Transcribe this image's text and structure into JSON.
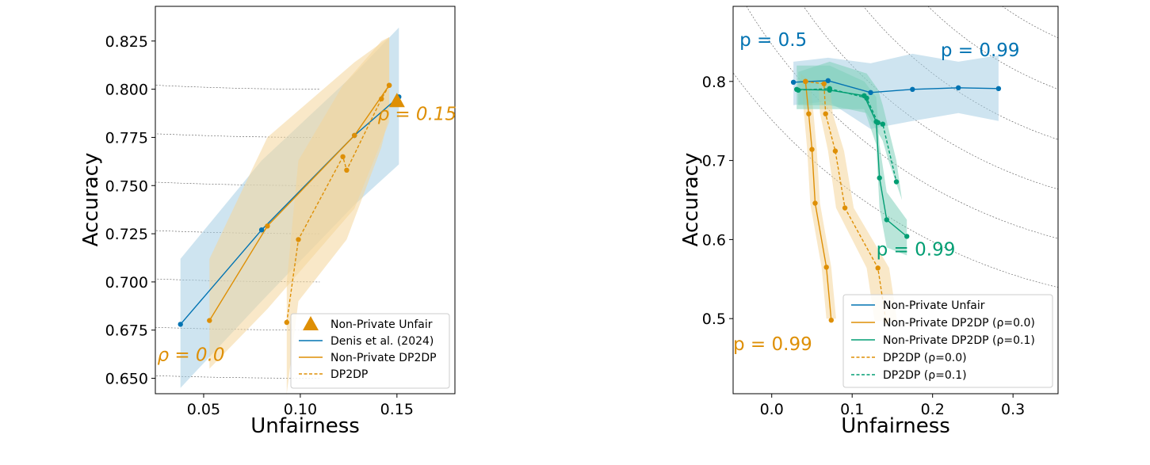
{
  "colors": {
    "blue": "#0173b2",
    "orange": "#de8f05",
    "green": "#029e73",
    "blue_fill": "#a6cde4",
    "orange_fill": "#f4d59b",
    "green_fill": "#80cfb9"
  },
  "chart_data": [
    {
      "type": "line",
      "xlabel": "Unfairness",
      "ylabel": "Accuracy",
      "xlim": [
        0.025,
        0.18
      ],
      "ylim": [
        0.642,
        0.843
      ],
      "xticks": [
        0.05,
        0.1,
        0.15
      ],
      "xtick_labels": [
        "0.05",
        "0.10",
        "0.15"
      ],
      "yticks": [
        0.65,
        0.675,
        0.7,
        0.725,
        0.75,
        0.775,
        0.8,
        0.825
      ],
      "ytick_labels": [
        "0.650",
        "0.675",
        "0.700",
        "0.725",
        "0.750",
        "0.775",
        "0.800",
        "0.825"
      ],
      "series": [
        {
          "name": "Denis et al. (2024)",
          "style": "solid",
          "color": "blue",
          "x": [
            0.038,
            0.08,
            0.128,
            0.151
          ],
          "y": [
            0.678,
            0.727,
            0.776,
            0.796
          ],
          "band_upper": [
            [
              0.038,
              0.712
            ],
            [
              0.08,
              0.763
            ],
            [
              0.128,
              0.808
            ],
            [
              0.151,
              0.832
            ]
          ],
          "band_lower": [
            [
              0.151,
              0.761
            ],
            [
              0.128,
              0.74
            ],
            [
              0.08,
              0.69
            ],
            [
              0.038,
              0.645
            ]
          ]
        },
        {
          "name": "Non-Private DP2DP",
          "style": "solid",
          "color": "orange",
          "x": [
            0.053,
            0.083,
            0.128,
            0.146
          ],
          "y": [
            0.68,
            0.729,
            0.776,
            0.802
          ],
          "band_upper": [
            [
              0.053,
              0.712
            ],
            [
              0.083,
              0.775
            ],
            [
              0.128,
              0.814
            ],
            [
              0.146,
              0.827
            ]
          ],
          "band_lower": [
            [
              0.146,
              0.783
            ],
            [
              0.128,
              0.738
            ],
            [
              0.083,
              0.686
            ],
            [
              0.053,
              0.655
            ]
          ]
        },
        {
          "name": "DP2DP",
          "style": "dashed",
          "color": "orange",
          "x": [
            0.093,
            0.099,
            0.122,
            0.124,
            0.142,
            0.146
          ],
          "y": [
            0.679,
            0.722,
            0.765,
            0.758,
            0.795,
            0.802
          ],
          "band_upper": [
            [
              0.093,
              0.7
            ],
            [
              0.099,
              0.763
            ],
            [
              0.122,
              0.802
            ],
            [
              0.142,
              0.825
            ],
            [
              0.146,
              0.827
            ]
          ],
          "band_lower": [
            [
              0.146,
              0.787
            ],
            [
              0.142,
              0.77
            ],
            [
              0.124,
              0.722
            ],
            [
              0.099,
              0.69
            ],
            [
              0.093,
              0.642
            ]
          ]
        },
        {
          "name": "Non-Private Unfair",
          "type": "marker",
          "marker": "triangle",
          "color": "orange",
          "x": [
            0.15
          ],
          "y": [
            0.794
          ]
        }
      ],
      "legend": {
        "position": "lower-right",
        "entries": [
          {
            "label": "Non-Private Unfair",
            "kind": "triangle",
            "color": "orange"
          },
          {
            "label": "Denis et al. (2024)",
            "kind": "solid",
            "color": "blue"
          },
          {
            "label": "Non-Private DP2DP",
            "kind": "solid",
            "color": "orange"
          },
          {
            "label": "DP2DP",
            "kind": "dashed",
            "color": "orange"
          }
        ]
      },
      "annotations": [
        {
          "text": "ρ = 0.0",
          "x": 0.026,
          "y": 0.659,
          "color": "orange",
          "italic": true
        },
        {
          "text": "ρ = 0.15",
          "x": 0.14,
          "y": 0.784,
          "color": "orange",
          "italic": true
        }
      ]
    },
    {
      "type": "line",
      "xlabel": "Unfairness",
      "ylabel": "Accuracy",
      "xlim": [
        -0.048,
        0.356
      ],
      "ylim": [
        0.405,
        0.895
      ],
      "xticks": [
        0.0,
        0.1,
        0.2,
        0.3
      ],
      "xtick_labels": [
        "0.0",
        "0.1",
        "0.2",
        "0.3"
      ],
      "yticks": [
        0.5,
        0.6,
        0.7,
        0.8
      ],
      "ytick_labels": [
        "0.5",
        "0.6",
        "0.7",
        "0.8"
      ],
      "series": [
        {
          "name": "Non-Private Unfair",
          "style": "solid",
          "color": "blue",
          "x": [
            0.027,
            0.07,
            0.123,
            0.175,
            0.232,
            0.282
          ],
          "y": [
            0.799,
            0.801,
            0.786,
            0.79,
            0.792,
            0.791
          ],
          "band_upper": [
            [
              0.027,
              0.825
            ],
            [
              0.07,
              0.83
            ],
            [
              0.123,
              0.823
            ],
            [
              0.175,
              0.835
            ],
            [
              0.232,
              0.825
            ],
            [
              0.282,
              0.833
            ]
          ],
          "band_lower": [
            [
              0.282,
              0.75
            ],
            [
              0.232,
              0.76
            ],
            [
              0.175,
              0.75
            ],
            [
              0.123,
              0.74
            ],
            [
              0.07,
              0.775
            ],
            [
              0.027,
              0.77
            ]
          ]
        },
        {
          "name": "Non-Private DP2DP (ρ=0.0)",
          "style": "solid",
          "color": "orange",
          "x": [
            0.042,
            0.046,
            0.05,
            0.054,
            0.068,
            0.074
          ],
          "y": [
            0.8,
            0.759,
            0.714,
            0.646,
            0.565,
            0.498
          ],
          "band_upper": [
            [
              0.036,
              0.81
            ],
            [
              0.04,
              0.76
            ],
            [
              0.044,
              0.715
            ],
            [
              0.048,
              0.645
            ],
            [
              0.062,
              0.565
            ],
            [
              0.068,
              0.5
            ]
          ],
          "band_lower": [
            [
              0.08,
              0.5
            ],
            [
              0.074,
              0.565
            ],
            [
              0.06,
              0.646
            ],
            [
              0.056,
              0.714
            ],
            [
              0.052,
              0.759
            ],
            [
              0.048,
              0.8
            ]
          ]
        },
        {
          "name": "Non-Private DP2DP (ρ=0.1)",
          "style": "solid",
          "color": "green",
          "x": [
            0.031,
            0.072,
            0.115,
            0.13,
            0.134,
            0.143,
            0.168
          ],
          "y": [
            0.79,
            0.789,
            0.782,
            0.749,
            0.678,
            0.625,
            0.604
          ],
          "band_upper": [
            [
              0.031,
              0.82
            ],
            [
              0.072,
              0.82
            ],
            [
              0.115,
              0.8
            ],
            [
              0.13,
              0.78
            ],
            [
              0.134,
              0.72
            ],
            [
              0.143,
              0.66
            ],
            [
              0.168,
              0.625
            ]
          ],
          "band_lower": [
            [
              0.168,
              0.58
            ],
            [
              0.143,
              0.59
            ],
            [
              0.134,
              0.64
            ],
            [
              0.13,
              0.72
            ],
            [
              0.115,
              0.765
            ],
            [
              0.072,
              0.765
            ],
            [
              0.031,
              0.765
            ]
          ]
        },
        {
          "name": "DP2DP (ρ=0.0)",
          "style": "dashed",
          "color": "orange",
          "x": [
            0.042,
            0.065,
            0.067,
            0.079,
            0.091,
            0.132,
            0.142
          ],
          "y": [
            0.8,
            0.797,
            0.759,
            0.712,
            0.64,
            0.564,
            0.497
          ],
          "band_upper": [
            [
              0.042,
              0.8
            ],
            [
              0.058,
              0.8
            ],
            [
              0.06,
              0.76
            ],
            [
              0.07,
              0.712
            ],
            [
              0.08,
              0.64
            ],
            [
              0.118,
              0.564
            ],
            [
              0.128,
              0.497
            ]
          ],
          "band_lower": [
            [
              0.156,
              0.497
            ],
            [
              0.146,
              0.564
            ],
            [
              0.102,
              0.64
            ],
            [
              0.09,
              0.712
            ],
            [
              0.076,
              0.759
            ],
            [
              0.072,
              0.797
            ]
          ]
        },
        {
          "name": "DP2DP (ρ=0.1)",
          "style": "dashed",
          "color": "green",
          "x": [
            0.033,
            0.072,
            0.118,
            0.132,
            0.138,
            0.155
          ],
          "y": [
            0.789,
            0.791,
            0.779,
            0.748,
            0.746,
            0.673
          ],
          "band_upper": [
            [
              0.033,
              0.812
            ],
            [
              0.072,
              0.825
            ],
            [
              0.118,
              0.81
            ],
            [
              0.132,
              0.79
            ],
            [
              0.138,
              0.77
            ],
            [
              0.155,
              0.7
            ]
          ],
          "band_lower": [
            [
              0.162,
              0.65
            ],
            [
              0.145,
              0.7
            ],
            [
              0.138,
              0.725
            ],
            [
              0.118,
              0.76
            ],
            [
              0.072,
              0.77
            ],
            [
              0.033,
              0.77
            ]
          ]
        }
      ],
      "legend": {
        "position": "lower-right",
        "entries": [
          {
            "label": "Non-Private Unfair",
            "kind": "solid",
            "color": "blue"
          },
          {
            "label": "Non-Private DP2DP (ρ=0.0)",
            "kind": "solid",
            "color": "orange"
          },
          {
            "label": "Non-Private DP2DP (ρ=0.1)",
            "kind": "solid",
            "color": "green"
          },
          {
            "label": "DP2DP (ρ=0.0)",
            "kind": "dashed",
            "color": "orange"
          },
          {
            "label": "DP2DP (ρ=0.1)",
            "kind": "dashed",
            "color": "green"
          }
        ]
      },
      "annotations": [
        {
          "text": "p = 0.5",
          "x": -0.04,
          "y": 0.845,
          "color": "blue",
          "italic": false
        },
        {
          "text": "p = 0.99",
          "x": 0.21,
          "y": 0.832,
          "color": "blue",
          "italic": false
        },
        {
          "text": "p = 0.99",
          "x": 0.13,
          "y": 0.58,
          "color": "green",
          "italic": false
        },
        {
          "text": "p = 0.99",
          "x": -0.048,
          "y": 0.46,
          "color": "orange",
          "italic": false
        }
      ]
    }
  ]
}
